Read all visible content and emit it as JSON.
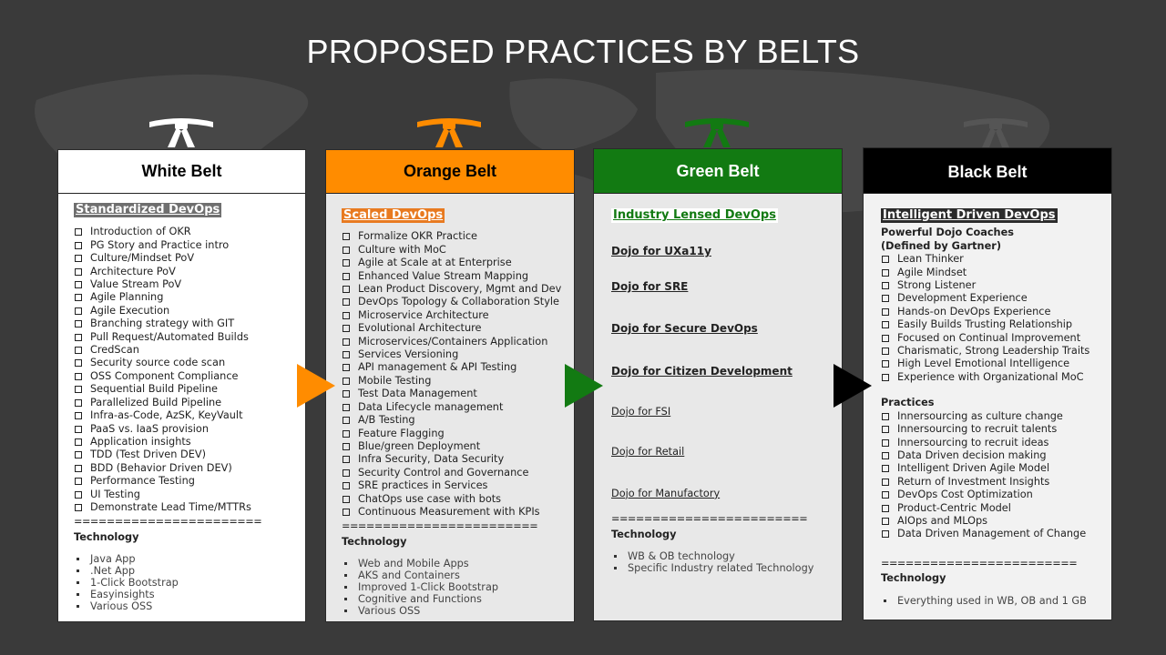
{
  "title": "PROPOSED PRACTICES BY BELTS",
  "colors": {
    "background": "#3a3a3a",
    "white": "#ffffff",
    "orange": "#ff8c00",
    "green": "#127a12",
    "black": "#000000"
  },
  "white_belt": {
    "header": "White Belt",
    "section": "Standardized DevOps",
    "items": [
      "Introduction of OKR",
      "PG Story and Practice intro",
      "Culture/Mindset PoV",
      "Architecture PoV",
      "Value Stream PoV",
      "Agile Planning",
      "Agile Execution",
      "Branching strategy with GIT",
      "Pull Request/Automated Builds",
      "CredScan",
      "Security source code scan",
      "OSS Component Compliance",
      "Sequential Build Pipeline",
      "Parallelized Build Pipeline",
      "Infra-as-Code, AzSK, KeyVault",
      "PaaS vs. IaaS provision",
      "Application insights",
      "TDD (Test Driven DEV)",
      "BDD (Behavior Driven DEV)",
      "Performance Testing",
      "UI Testing",
      "Demonstrate Lead Time/MTTRs"
    ],
    "separator": "=======================",
    "tech_label": "Technology",
    "tech": [
      "Java App",
      ".Net App",
      "1-Click Bootstrap",
      "Easyinsights",
      "Various OSS"
    ]
  },
  "orange_belt": {
    "header": "Orange Belt",
    "section": "Scaled DevOps",
    "items": [
      "Formalize OKR Practice",
      "Culture with MoC",
      "Agile at Scale at at Enterprise",
      "Enhanced Value Stream Mapping",
      "Lean Product Discovery, Mgmt and Dev",
      "DevOps Topology & Collaboration Style",
      "Microservice Architecture",
      "Evolutional Architecture",
      "Microservices/Containers Application",
      "Services Versioning",
      "API management & API Testing",
      "Mobile Testing",
      "Test Data Management",
      "Data Lifecycle management",
      "A/B Testing",
      "Feature Flagging",
      "Blue/green Deployment",
      "Infra Security, Data Security",
      "Security Control and Governance",
      "SRE practices in Services",
      "ChatOps use case with bots",
      "Continuous Measurement with KPIs"
    ],
    "separator": "========================",
    "tech_label": "Technology",
    "tech": [
      "Web and Mobile Apps",
      "AKS and Containers",
      "Improved 1-Click Bootstrap",
      "Cognitive and Functions",
      "Various OSS"
    ]
  },
  "green_belt": {
    "header": "Green Belt",
    "section": "Industry Lensed DevOps",
    "dojos_bold": [
      "Dojo for UXa11y",
      "Dojo for SRE",
      "Dojo for Secure DevOps",
      "Dojo for Citizen Development"
    ],
    "dojos": [
      "Dojo for FSI",
      "Dojo for Retail",
      "Dojo for Manufactory"
    ],
    "separator": "========================",
    "tech_label": "Technology",
    "tech": [
      "WB & OB technology",
      "Specific Industry related Technology"
    ]
  },
  "black_belt": {
    "header": "Black Belt",
    "section": "Intelligent Driven DevOps",
    "coaches_line1": "Powerful Dojo Coaches",
    "coaches_line2": "(Defined by  Gartner)",
    "coaches": [
      "Lean Thinker",
      "Agile Mindset",
      "Strong Listener",
      "Development Experience",
      "Hands-on DevOps Experience",
      "Easily Builds Trusting Relationship",
      "Focused on Continual Improvement",
      "Charismatic, Strong Leadership Traits",
      "High Level Emotional Intelligence",
      "Experience with Organizational MoC"
    ],
    "practices_label": "Practices",
    "practices": [
      "Innersourcing as culture change",
      "Innersourcing to recruit talents",
      "Innersourcing to recruit ideas",
      "Data Driven decision making",
      "Intelligent Driven Agile Model",
      "Return of Investment Insights",
      "DevOps Cost Optimization",
      "Product-Centric Model",
      "AIOps and MLOps",
      "Data Driven Management of Change"
    ],
    "separator": "========================",
    "tech_label": "Technology",
    "tech": [
      "Everything used in WB, OB and 1 GB"
    ]
  }
}
